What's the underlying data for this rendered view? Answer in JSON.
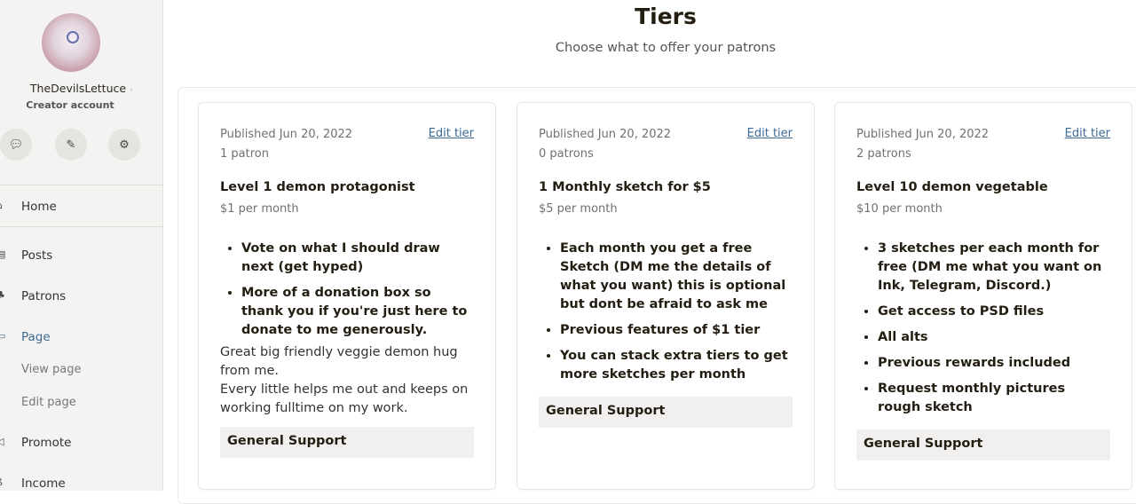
{
  "sidebar": {
    "username": "TheDevilsLettuce",
    "account_type": "Creator account",
    "icons": [
      "chat-icon",
      "edit-icon",
      "gear-icon"
    ],
    "nav": [
      {
        "label": "Home",
        "icon": "home-icon"
      },
      {
        "label": "Posts",
        "icon": "posts-icon"
      },
      {
        "label": "Patrons",
        "icon": "patrons-icon"
      },
      {
        "label": "Page",
        "icon": "page-icon",
        "active": true
      },
      {
        "label": "View page"
      },
      {
        "label": "Edit page"
      },
      {
        "label": "Promote",
        "icon": "megaphone-icon"
      },
      {
        "label": "Income",
        "icon": "income-icon"
      }
    ]
  },
  "header": {
    "title": "Tiers",
    "subtitle": "Choose what to offer your patrons"
  },
  "tiers": [
    {
      "published": "Published Jun 20, 2022",
      "patrons": "1 patron",
      "edit": "Edit tier",
      "name": "Level 1 demon protagonist",
      "price": "$1 per month",
      "benefits": [
        "Vote on what I should draw next (get hyped)",
        "More of a donation box so thank you if you're just here to donate to me generously."
      ],
      "description": "Great big friendly veggie demon hug from me.\nEvery little helps me out and keeps on working fulltime on my work.",
      "benefit_group": "General Support"
    },
    {
      "published": "Published Jun 20, 2022",
      "patrons": "0 patrons",
      "edit": "Edit tier",
      "name": "1 Monthly sketch for $5",
      "price": "$5 per month",
      "benefits": [
        "Each month you get a free Sketch (DM me the details of what you want) this is optional but dont be afraid to ask me",
        "Previous features of $1 tier",
        "You can stack extra tiers to get more sketches per month"
      ],
      "description": "",
      "benefit_group": "General Support"
    },
    {
      "published": "Published Jun 20, 2022",
      "patrons": "2 patrons",
      "edit": "Edit tier",
      "name": "Level 10 demon vegetable",
      "price": "$10 per month",
      "benefits": [
        "3 sketches per each month for free (DM me what you want on Ink, Telegram, Discord.)",
        "Get access to PSD files",
        "All alts",
        "Previous rewards included",
        "Request monthly pictures rough sketch"
      ],
      "description": "",
      "benefit_group": "General Support"
    }
  ],
  "colors": {
    "accent": "#3c6a94",
    "sidebar_bg": "#f4f3f1"
  }
}
